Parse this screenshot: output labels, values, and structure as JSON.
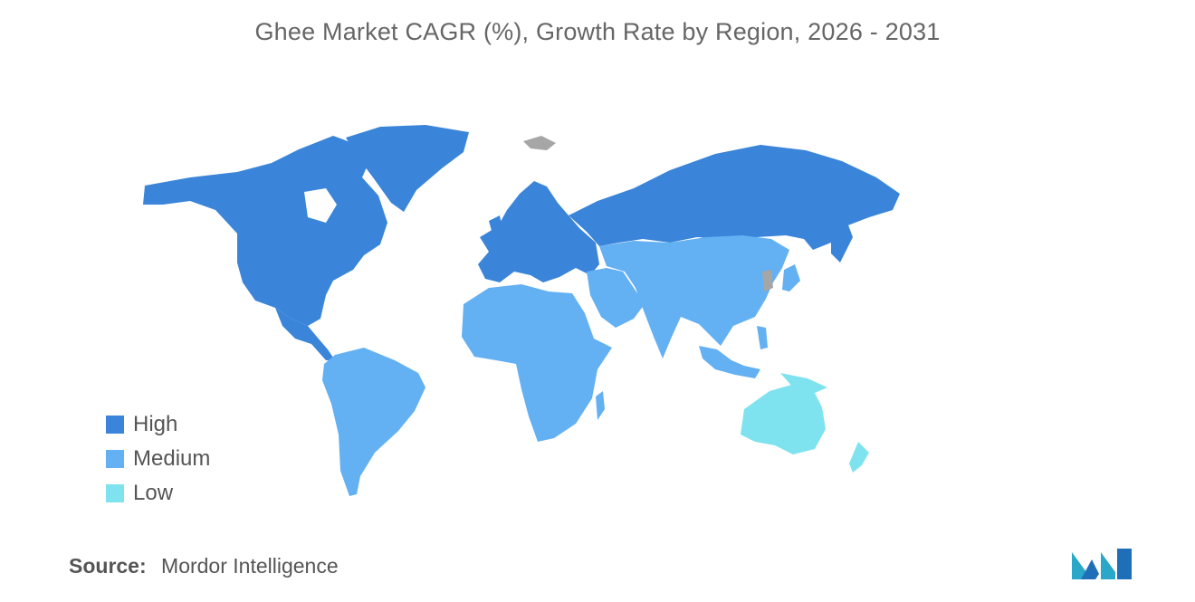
{
  "title": "Ghee Market CAGR (%), Growth Rate by Region, 2026 - 2031",
  "legend": [
    {
      "label": "High",
      "color": "#3a85d9"
    },
    {
      "label": "Medium",
      "color": "#63b0f2"
    },
    {
      "label": "Low",
      "color": "#7ee3ee"
    }
  ],
  "colors": {
    "high": "#3a85d9",
    "medium": "#63b0f2",
    "low": "#7ee3ee",
    "no_data": "#a6a6a6"
  },
  "source": {
    "key": "Source:",
    "value": "Mordor Intelligence"
  },
  "regions": [
    {
      "name": "North America",
      "level": "High"
    },
    {
      "name": "Europe",
      "level": "High"
    },
    {
      "name": "Russia",
      "level": "High"
    },
    {
      "name": "South America",
      "level": "Medium"
    },
    {
      "name": "Africa",
      "level": "Medium"
    },
    {
      "name": "Middle East",
      "level": "Medium"
    },
    {
      "name": "Asia",
      "level": "Medium"
    },
    {
      "name": "Oceania",
      "level": "Low"
    }
  ]
}
